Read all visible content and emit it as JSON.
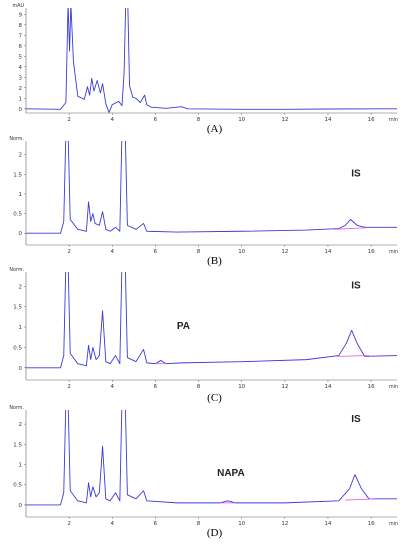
{
  "chart_data": [
    {
      "type": "line",
      "caption": "(A)",
      "y_unit_label": "mAU",
      "x_unit_label": "min",
      "xlim": [
        0,
        17.2
      ],
      "ylim": [
        -0.4,
        9.6
      ],
      "x_ticks": [
        2,
        4,
        6,
        8,
        10,
        12,
        14,
        16
      ],
      "y_ticks": [
        0,
        1,
        2,
        3,
        4,
        5,
        6,
        7,
        8,
        9
      ],
      "annotations": [],
      "series": [
        {
          "color": "#3b3bd6",
          "points": [
            [
              0,
              0.0
            ],
            [
              1.6,
              -0.05
            ],
            [
              1.85,
              0.6
            ],
            [
              1.95,
              10
            ],
            [
              2.02,
              5.5
            ],
            [
              2.08,
              10
            ],
            [
              2.2,
              4.5
            ],
            [
              2.4,
              1.2
            ],
            [
              2.7,
              0.9
            ],
            [
              2.85,
              2.1
            ],
            [
              2.95,
              1.3
            ],
            [
              3.05,
              2.9
            ],
            [
              3.15,
              1.7
            ],
            [
              3.3,
              2.7
            ],
            [
              3.45,
              1.5
            ],
            [
              3.55,
              2.4
            ],
            [
              3.7,
              0.5
            ],
            [
              3.85,
              -0.35
            ],
            [
              4.0,
              0.4
            ],
            [
              4.3,
              0.7
            ],
            [
              4.45,
              0.3
            ],
            [
              4.55,
              3.5
            ],
            [
              4.62,
              10
            ],
            [
              4.72,
              10
            ],
            [
              4.8,
              2.2
            ],
            [
              4.95,
              1.1
            ],
            [
              5.1,
              1.0
            ],
            [
              5.3,
              0.6
            ],
            [
              5.5,
              1.3
            ],
            [
              5.6,
              0.4
            ],
            [
              5.8,
              0.15
            ],
            [
              6.5,
              0.05
            ],
            [
              7.2,
              0.2
            ],
            [
              7.5,
              0.0
            ],
            [
              10,
              -0.05
            ],
            [
              12,
              -0.05
            ],
            [
              14,
              -0.02
            ],
            [
              17.2,
              0.0
            ]
          ]
        }
      ]
    },
    {
      "type": "line",
      "caption": "(B)",
      "y_unit_label": "Norm.",
      "x_unit_label": "min",
      "xlim": [
        0,
        17.2
      ],
      "ylim": [
        -0.3,
        2.35
      ],
      "x_ticks": [
        2,
        4,
        6,
        8,
        10,
        12,
        14,
        16
      ],
      "y_ticks": [
        0,
        0.5,
        1,
        1.5,
        2
      ],
      "annotations": [
        "IS"
      ],
      "series": [
        {
          "color": "#3b3bd6",
          "points": [
            [
              0,
              0.0
            ],
            [
              1.6,
              0.0
            ],
            [
              1.75,
              0.3
            ],
            [
              1.85,
              2.6
            ],
            [
              1.95,
              2.6
            ],
            [
              2.05,
              0.35
            ],
            [
              2.4,
              0.1
            ],
            [
              2.8,
              0.05
            ],
            [
              2.9,
              0.8
            ],
            [
              3.0,
              0.3
            ],
            [
              3.1,
              0.5
            ],
            [
              3.2,
              0.25
            ],
            [
              3.4,
              0.2
            ],
            [
              3.55,
              0.55
            ],
            [
              3.7,
              0.1
            ],
            [
              3.9,
              0.05
            ],
            [
              4.15,
              0.15
            ],
            [
              4.35,
              0.05
            ],
            [
              4.45,
              2.6
            ],
            [
              4.6,
              2.6
            ],
            [
              4.7,
              0.2
            ],
            [
              5.1,
              0.1
            ],
            [
              5.45,
              0.25
            ],
            [
              5.6,
              0.05
            ],
            [
              7,
              0.03
            ],
            [
              10,
              0.05
            ],
            [
              13,
              0.08
            ],
            [
              14.5,
              0.12
            ],
            [
              14.8,
              0.2
            ],
            [
              15.05,
              0.35
            ],
            [
              15.35,
              0.2
            ],
            [
              15.7,
              0.15
            ],
            [
              17.2,
              0.15
            ]
          ]
        },
        {
          "color": "#e15be1",
          "points": [
            [
              14.3,
              0.1
            ],
            [
              15.8,
              0.14
            ]
          ]
        }
      ]
    },
    {
      "type": "line",
      "caption": "(C)",
      "y_unit_label": "Norm.",
      "x_unit_label": "min",
      "xlim": [
        0,
        17.2
      ],
      "ylim": [
        -0.3,
        2.35
      ],
      "x_ticks": [
        2,
        4,
        6,
        8,
        10,
        12,
        14,
        16
      ],
      "y_ticks": [
        0,
        0.5,
        1,
        1.5,
        2
      ],
      "annotations": [
        "PA",
        "IS"
      ],
      "series": [
        {
          "color": "#3b3bd6",
          "points": [
            [
              0,
              0.0
            ],
            [
              1.6,
              0.0
            ],
            [
              1.75,
              0.3
            ],
            [
              1.85,
              2.6
            ],
            [
              1.95,
              2.6
            ],
            [
              2.05,
              0.35
            ],
            [
              2.4,
              0.1
            ],
            [
              2.8,
              0.05
            ],
            [
              2.9,
              0.55
            ],
            [
              3.0,
              0.2
            ],
            [
              3.1,
              0.5
            ],
            [
              3.25,
              0.2
            ],
            [
              3.4,
              0.3
            ],
            [
              3.55,
              1.4
            ],
            [
              3.7,
              0.15
            ],
            [
              3.9,
              0.1
            ],
            [
              4.15,
              0.3
            ],
            [
              4.35,
              0.1
            ],
            [
              4.45,
              2.6
            ],
            [
              4.6,
              2.6
            ],
            [
              4.7,
              0.25
            ],
            [
              5.1,
              0.15
            ],
            [
              5.45,
              0.45
            ],
            [
              5.6,
              0.12
            ],
            [
              6.0,
              0.1
            ],
            [
              6.25,
              0.18
            ],
            [
              6.5,
              0.1
            ],
            [
              7.2,
              0.12
            ],
            [
              10,
              0.15
            ],
            [
              13,
              0.2
            ],
            [
              14.5,
              0.3
            ],
            [
              14.85,
              0.6
            ],
            [
              15.1,
              0.92
            ],
            [
              15.35,
              0.6
            ],
            [
              15.7,
              0.28
            ],
            [
              17.2,
              0.3
            ]
          ]
        },
        {
          "color": "#e15be1",
          "points": [
            [
              6.0,
              0.1
            ],
            [
              6.5,
              0.1
            ]
          ]
        },
        {
          "color": "#e15be1",
          "points": [
            [
              14.4,
              0.28
            ],
            [
              15.9,
              0.3
            ]
          ]
        }
      ]
    },
    {
      "type": "line",
      "caption": "(D)",
      "y_unit_label": "Norm.",
      "x_unit_label": "min",
      "xlim": [
        0,
        17.2
      ],
      "ylim": [
        -0.3,
        2.35
      ],
      "x_ticks": [
        2,
        4,
        6,
        8,
        10,
        12,
        14,
        16
      ],
      "y_ticks": [
        0,
        0.5,
        1,
        1.5,
        2
      ],
      "annotations": [
        "NAPA",
        "IS"
      ],
      "series": [
        {
          "color": "#3b3bd6",
          "points": [
            [
              0,
              0.0
            ],
            [
              1.6,
              0.0
            ],
            [
              1.75,
              0.3
            ],
            [
              1.85,
              2.6
            ],
            [
              1.95,
              2.6
            ],
            [
              2.05,
              0.35
            ],
            [
              2.4,
              0.1
            ],
            [
              2.8,
              0.05
            ],
            [
              2.9,
              0.55
            ],
            [
              3.0,
              0.2
            ],
            [
              3.1,
              0.45
            ],
            [
              3.25,
              0.2
            ],
            [
              3.4,
              0.3
            ],
            [
              3.55,
              1.45
            ],
            [
              3.7,
              0.15
            ],
            [
              3.9,
              0.1
            ],
            [
              4.15,
              0.3
            ],
            [
              4.35,
              0.1
            ],
            [
              4.45,
              2.6
            ],
            [
              4.6,
              2.6
            ],
            [
              4.7,
              0.25
            ],
            [
              5.1,
              0.15
            ],
            [
              5.45,
              0.35
            ],
            [
              5.6,
              0.1
            ],
            [
              7,
              0.05
            ],
            [
              9.0,
              0.05
            ],
            [
              9.35,
              0.1
            ],
            [
              9.7,
              0.05
            ],
            [
              12,
              0.05
            ],
            [
              14.5,
              0.1
            ],
            [
              15.0,
              0.4
            ],
            [
              15.25,
              0.75
            ],
            [
              15.55,
              0.4
            ],
            [
              15.9,
              0.15
            ],
            [
              17.2,
              0.15
            ]
          ]
        },
        {
          "color": "#e15be1",
          "points": [
            [
              9.0,
              0.05
            ],
            [
              9.7,
              0.05
            ]
          ]
        },
        {
          "color": "#e15be1",
          "points": [
            [
              14.8,
              0.12
            ],
            [
              16.2,
              0.15
            ]
          ]
        }
      ]
    }
  ]
}
